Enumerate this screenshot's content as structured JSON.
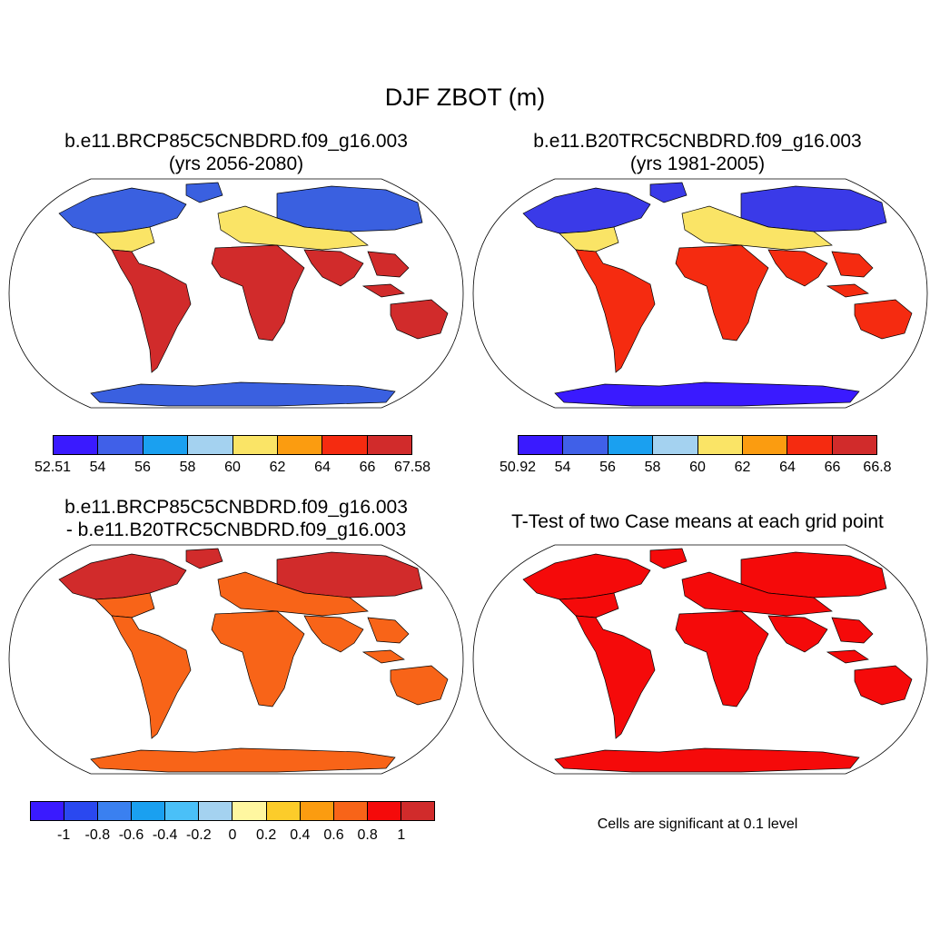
{
  "figure_title": "DJF ZBOT (m)",
  "panels": [
    {
      "title_line1": "b.e11.BRCP85C5CNBDRD.f09_g16.003",
      "title_line2": "(yrs 2056-2080)",
      "palette": [
        "#3a1aff",
        "#4060e8",
        "#1aa0f0",
        "#a4d2f0",
        "#fae466",
        "#fb9c10",
        "#f52b10",
        "#d12b2b"
      ],
      "tick_labels": [
        "52.51",
        "54",
        "56",
        "58",
        "60",
        "62",
        "64",
        "66",
        "67.58"
      ],
      "land_fill": {
        "north": "#3a60e0",
        "mid": "#fae466",
        "tropics": "#d12b2b",
        "antarctica": "#3a60e0"
      }
    },
    {
      "title_line1": "b.e11.B20TRC5CNBDRD.f09_g16.003",
      "title_line2": "(yrs 1981-2005)",
      "palette": [
        "#3a1aff",
        "#4060e8",
        "#1aa0f0",
        "#a4d2f0",
        "#fae466",
        "#fb9c10",
        "#f52b10",
        "#d12b2b"
      ],
      "tick_labels": [
        "50.92",
        "54",
        "56",
        "58",
        "60",
        "62",
        "64",
        "66",
        "66.8"
      ],
      "land_fill": {
        "north": "#3a3ae8",
        "mid": "#fae466",
        "tropics": "#f52b10",
        "antarctica": "#3a1aff"
      }
    },
    {
      "title_line1": "b.e11.BRCP85C5CNBDRD.f09_g16.003",
      "title_line2": "- b.e11.B20TRC5CNBDRD.f09_g16.003",
      "palette": [
        "#3a1aff",
        "#2a48f0",
        "#3a80f0",
        "#1aa0f0",
        "#4ac0f8",
        "#a4d2f0",
        "#fff7a0",
        "#fccc2a",
        "#fb9c10",
        "#f86418",
        "#f50a0a",
        "#d12b2b"
      ],
      "tick_labels": [
        "-1",
        "-0.8",
        "-0.6",
        "-0.4",
        "-0.2",
        "0",
        "0.2",
        "0.4",
        "0.6",
        "0.8",
        "1"
      ],
      "land_fill": {
        "north": "#d12b2b",
        "mid": "#f86418",
        "tropics": "#f86418",
        "antarctica": "#f86418"
      }
    },
    {
      "title_line1": "T-Test of two Case means at each grid point",
      "note": "Cells are significant at 0.1 level",
      "land_fill": {
        "north": "#f50a0a",
        "mid": "#f50a0a",
        "tropics": "#f50a0a",
        "antarctica": "#f50a0a"
      }
    }
  ]
}
